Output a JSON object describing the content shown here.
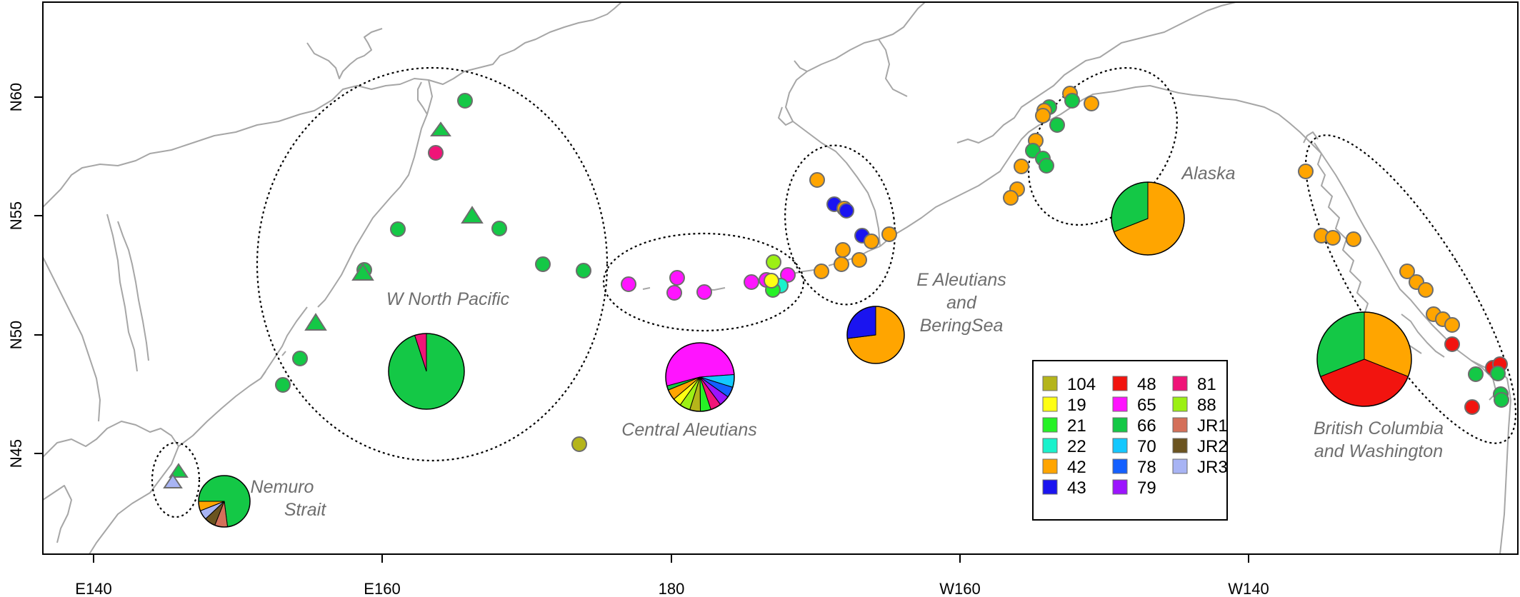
{
  "axes": {
    "x_ticks": [
      "E140",
      "E160",
      "180",
      "W160",
      "W140"
    ],
    "y_ticks": [
      "N45",
      "N50",
      "N55",
      "N60"
    ]
  },
  "regions": {
    "w_north_pacific": "W North Pacific",
    "central_aleutians": "Central Aleutians",
    "e_aleutians_line1": "E Aleutians",
    "e_aleutians_line2": "and",
    "e_aleutians_line3": "BeringSea",
    "alaska": "Alaska",
    "bc_line1": "British Columbia",
    "bc_line2": "and Washington",
    "nemuro_line1": "Nemuro",
    "nemuro_line2": "Strait"
  },
  "legend": [
    {
      "label": "104",
      "color": "#b5b51a"
    },
    {
      "label": "19",
      "color": "#ffff14"
    },
    {
      "label": "21",
      "color": "#26f226"
    },
    {
      "label": "22",
      "color": "#1af2cc"
    },
    {
      "label": "42",
      "color": "#ffa500"
    },
    {
      "label": "43",
      "color": "#1a14f0"
    },
    {
      "label": "48",
      "color": "#f2140f"
    },
    {
      "label": "65",
      "color": "#ff14ff"
    },
    {
      "label": "66",
      "color": "#14c846"
    },
    {
      "label": "70",
      "color": "#14c8ff"
    },
    {
      "label": "78",
      "color": "#1460ff"
    },
    {
      "label": "79",
      "color": "#9c14ff"
    },
    {
      "label": "81",
      "color": "#f01478"
    },
    {
      "label": "88",
      "color": "#9cf014"
    },
    {
      "label": "JR1",
      "color": "#d4705a"
    },
    {
      "label": "JR2",
      "color": "#6b5420"
    },
    {
      "label": "JR3",
      "color": "#a8b4f4"
    }
  ],
  "pies": [
    {
      "region": "W North Pacific",
      "slices": [
        {
          "label": "66",
          "value": 0.95
        },
        {
          "label": "81",
          "value": 0.05
        }
      ]
    },
    {
      "region": "Central Aleutians",
      "slices": [
        {
          "label": "65",
          "value": 0.53
        },
        {
          "label": "70",
          "value": 0.06
        },
        {
          "label": "78",
          "value": 0.05
        },
        {
          "label": "79",
          "value": 0.05
        },
        {
          "label": "81",
          "value": 0.05
        },
        {
          "label": "21",
          "value": 0.05
        },
        {
          "label": "104",
          "value": 0.05
        },
        {
          "label": "88",
          "value": 0.05
        },
        {
          "label": "19",
          "value": 0.04
        },
        {
          "label": "42",
          "value": 0.05
        },
        {
          "label": "66",
          "value": 0.02
        }
      ]
    },
    {
      "region": "E Aleutians and BeringSea",
      "slices": [
        {
          "label": "42",
          "value": 0.73
        },
        {
          "label": "43",
          "value": 0.27
        }
      ]
    },
    {
      "region": "Alaska",
      "slices": [
        {
          "label": "42",
          "value": 0.69
        },
        {
          "label": "66",
          "value": 0.31
        }
      ]
    },
    {
      "region": "British Columbia and Washington",
      "slices": [
        {
          "label": "42",
          "value": 0.31
        },
        {
          "label": "48",
          "value": 0.38
        },
        {
          "label": "66",
          "value": 0.31
        }
      ]
    },
    {
      "region": "Nemuro Strait",
      "slices": [
        {
          "label": "66",
          "value": 0.73
        },
        {
          "label": "JR1",
          "value": 0.08
        },
        {
          "label": "JR2",
          "value": 0.07
        },
        {
          "label": "JR3",
          "value": 0.06
        },
        {
          "label": "42",
          "value": 0.06
        }
      ]
    }
  ]
}
